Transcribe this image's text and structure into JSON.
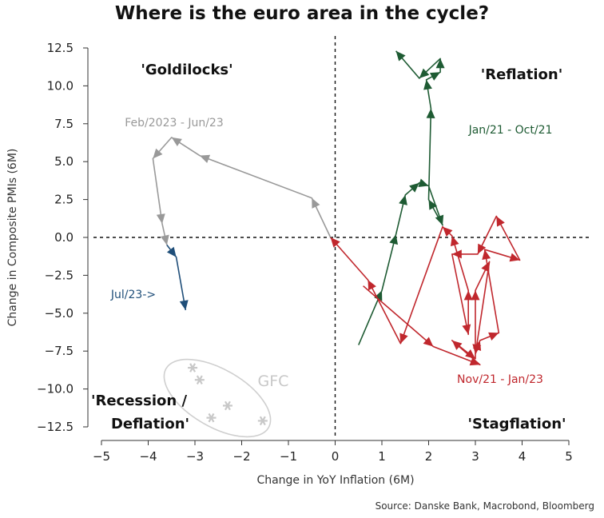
{
  "chart_data": {
    "type": "line",
    "title": "Where is the euro area in the cycle?",
    "xlabel": "Change in YoY Inflation (6M)",
    "ylabel": "Change in Composite PMIs (6M)",
    "xlim": [
      -5,
      5
    ],
    "ylim": [
      -12.5,
      12.5
    ],
    "x_ticks": [
      "−5",
      "−4",
      "−3",
      "−2",
      "−1",
      "0",
      "1",
      "2",
      "3",
      "4",
      "5"
    ],
    "y_ticks": [
      "−12.5",
      "−10.0",
      "−7.5",
      "−5.0",
      "−2.5",
      "0.0",
      "2.5",
      "5.0",
      "7.5",
      "10.0",
      "12.5"
    ],
    "quadrants": {
      "top_left": "'Goldilocks'",
      "top_right": "'Reflation'",
      "bottom_left_line1": "'Recession /",
      "bottom_left_line2": "Deflation'",
      "bottom_right": "'Stagflation'"
    },
    "series": [
      {
        "name": "Jan/21 - Oct/21",
        "color": "#1e5b33",
        "x": [
          0.5,
          1.0,
          1.3,
          1.5,
          1.8,
          2.0,
          2.3,
          2.0,
          2.05,
          1.95,
          2.25,
          2.25,
          1.8,
          1.3
        ],
        "y": [
          -7.1,
          -3.5,
          0.2,
          2.8,
          3.6,
          3.4,
          0.8,
          2.5,
          8.5,
          10.4,
          10.9,
          11.8,
          10.5,
          12.3
        ]
      },
      {
        "name": "Nov/21 - Jan/23",
        "color": "#c0272d",
        "x": [
          0.6,
          2.1,
          3.1,
          2.5,
          3.0,
          3.0,
          3.3,
          3.0,
          3.1,
          3.5,
          3.2,
          3.95,
          3.45,
          3.05,
          2.5,
          2.85,
          2.85,
          2.5,
          2.3,
          1.4,
          0.7,
          -0.1
        ],
        "y": [
          -3.2,
          -7.2,
          -8.4,
          -6.8,
          -8.0,
          -3.5,
          -1.6,
          -7.7,
          -6.8,
          -6.3,
          -0.8,
          -1.5,
          1.4,
          -1.1,
          -1.1,
          -6.4,
          -3.5,
          0.1,
          0.7,
          -7.0,
          -2.8,
          0.0
        ]
      },
      {
        "name": "Feb/2023 - Jun/23",
        "color": "#999999",
        "x": [
          -0.1,
          -0.5,
          -2.9,
          -3.5,
          -3.9,
          -3.7,
          -3.6
        ],
        "y": [
          0.0,
          2.6,
          5.4,
          6.6,
          5.2,
          0.9,
          -0.5
        ]
      },
      {
        "name": "Jul/23->",
        "color": "#1f4e79",
        "x": [
          -3.6,
          -3.4,
          -3.2
        ],
        "y": [
          -0.5,
          -1.3,
          -4.8
        ]
      },
      {
        "name": "GFC",
        "type": "scatter",
        "color": "#c8c8c8",
        "x": [
          -3.05,
          -2.9,
          -2.65,
          -2.3,
          -1.55
        ],
        "y": [
          -8.6,
          -9.4,
          -11.9,
          -11.1,
          -12.1
        ]
      }
    ],
    "source": "Source: Danske Bank, Macrobond, Bloomberg"
  }
}
